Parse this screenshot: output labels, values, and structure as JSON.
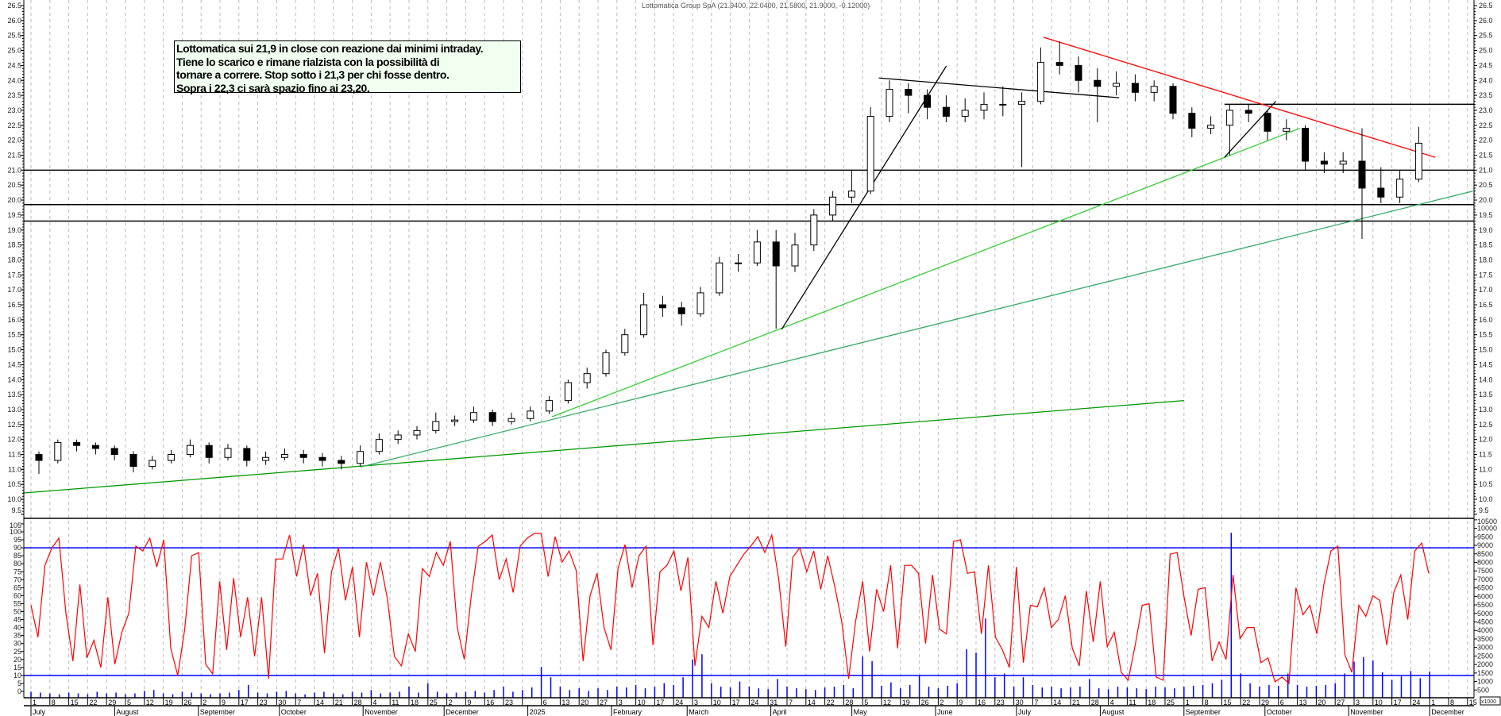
{
  "header": {
    "title": "Lottomatica Group SpA (21.9400, 22.0400, 21.5800, 21.9000, -0.12000)"
  },
  "annotation": {
    "lines": [
      "Lottomatica sui 21,9 in close con reazione dai minimi intraday.",
      "Tiene lo scarico e rimane rialzista con la possibilità di",
      "tornare a correre.  Stop sotto i 21,3 per chi fosse dentro.",
      "Sopra i 22,3 ci sarà spazio fino ai 23,20."
    ]
  },
  "chart_data": [
    {
      "type": "candlestick",
      "panel": "price",
      "interval": "week",
      "ohlc": [
        [
          11.5,
          11.6,
          10.85,
          11.3
        ],
        [
          11.3,
          12.0,
          11.2,
          11.9
        ],
        [
          11.9,
          12.0,
          11.6,
          11.8
        ],
        [
          11.8,
          11.9,
          11.5,
          11.7
        ],
        [
          11.7,
          11.8,
          11.3,
          11.5
        ],
        [
          11.5,
          11.6,
          10.9,
          11.1
        ],
        [
          11.1,
          11.45,
          11.0,
          11.3
        ],
        [
          11.3,
          11.65,
          11.2,
          11.5
        ],
        [
          11.5,
          12.0,
          11.4,
          11.8
        ],
        [
          11.8,
          11.9,
          11.2,
          11.4
        ],
        [
          11.4,
          11.85,
          11.3,
          11.7
        ],
        [
          11.7,
          11.8,
          11.1,
          11.3
        ],
        [
          11.3,
          11.6,
          11.15,
          11.4
        ],
        [
          11.4,
          11.7,
          11.3,
          11.5
        ],
        [
          11.5,
          11.65,
          11.2,
          11.4
        ],
        [
          11.4,
          11.55,
          11.1,
          11.3
        ],
        [
          11.3,
          11.45,
          11.0,
          11.2
        ],
        [
          11.2,
          11.8,
          11.1,
          11.6
        ],
        [
          11.6,
          12.2,
          11.5,
          12.0
        ],
        [
          12.0,
          12.3,
          11.85,
          12.15
        ],
        [
          12.15,
          12.45,
          12.0,
          12.3
        ],
        [
          12.3,
          12.9,
          12.2,
          12.6
        ],
        [
          12.6,
          12.8,
          12.45,
          12.65
        ],
        [
          12.65,
          13.1,
          12.55,
          12.9
        ],
        [
          12.9,
          13.0,
          12.45,
          12.6
        ],
        [
          12.6,
          12.9,
          12.5,
          12.7
        ],
        [
          12.7,
          13.1,
          12.6,
          12.95
        ],
        [
          12.95,
          13.45,
          12.85,
          13.3
        ],
        [
          13.3,
          14.0,
          13.2,
          13.9
        ],
        [
          13.9,
          14.4,
          13.7,
          14.2
        ],
        [
          14.2,
          15.0,
          14.1,
          14.9
        ],
        [
          14.9,
          15.7,
          14.8,
          15.5
        ],
        [
          15.5,
          16.9,
          15.4,
          16.5
        ],
        [
          16.5,
          16.8,
          16.1,
          16.4
        ],
        [
          16.4,
          16.6,
          15.8,
          16.2
        ],
        [
          16.2,
          17.1,
          16.1,
          16.9
        ],
        [
          16.9,
          18.1,
          16.8,
          17.9
        ],
        [
          17.9,
          18.2,
          17.6,
          17.9
        ],
        [
          17.9,
          19.0,
          17.8,
          18.6
        ],
        [
          18.6,
          19.0,
          15.7,
          17.8
        ],
        [
          17.8,
          18.9,
          17.6,
          18.5
        ],
        [
          18.5,
          19.7,
          18.3,
          19.5
        ],
        [
          19.5,
          20.3,
          19.3,
          20.1
        ],
        [
          20.1,
          21.0,
          19.9,
          20.3
        ],
        [
          20.3,
          23.1,
          20.2,
          22.8
        ],
        [
          22.8,
          24.0,
          22.6,
          23.7
        ],
        [
          23.7,
          23.9,
          22.9,
          23.5
        ],
        [
          23.5,
          23.7,
          22.7,
          23.1
        ],
        [
          23.1,
          23.5,
          22.6,
          22.8
        ],
        [
          22.8,
          23.4,
          22.6,
          23.0
        ],
        [
          23.0,
          23.6,
          22.7,
          23.2
        ],
        [
          23.2,
          23.8,
          22.8,
          23.2
        ],
        [
          23.2,
          23.6,
          21.1,
          23.3
        ],
        [
          23.3,
          25.1,
          23.2,
          24.6
        ],
        [
          24.6,
          25.3,
          24.2,
          24.5
        ],
        [
          24.5,
          24.8,
          23.6,
          24.0
        ],
        [
          24.0,
          24.4,
          22.6,
          23.8
        ],
        [
          23.8,
          24.3,
          23.5,
          23.9
        ],
        [
          23.9,
          24.2,
          23.3,
          23.6
        ],
        [
          23.6,
          24.0,
          23.3,
          23.8
        ],
        [
          23.8,
          23.9,
          22.7,
          22.9
        ],
        [
          22.9,
          23.1,
          22.1,
          22.4
        ],
        [
          22.4,
          22.8,
          22.2,
          22.5
        ],
        [
          22.5,
          23.2,
          21.5,
          23.0
        ],
        [
          23.0,
          23.2,
          22.6,
          22.9
        ],
        [
          22.9,
          23.0,
          22.0,
          22.3
        ],
        [
          22.3,
          22.7,
          22.0,
          22.4
        ],
        [
          22.4,
          22.5,
          21.0,
          21.3
        ],
        [
          21.3,
          21.6,
          20.9,
          21.2
        ],
        [
          21.2,
          21.6,
          20.9,
          21.3
        ],
        [
          21.3,
          22.4,
          18.7,
          20.4
        ],
        [
          20.4,
          21.1,
          19.9,
          20.1
        ],
        [
          20.1,
          21.0,
          19.9,
          20.7
        ],
        [
          20.7,
          22.45,
          20.6,
          21.9
        ]
      ],
      "ylim": [
        9.5,
        26.5
      ],
      "y_ticks": [
        26.5,
        26.0,
        25.5,
        25.0,
        24.5,
        24.0,
        23.5,
        23.0,
        22.5,
        22.0,
        21.5,
        21.0,
        20.5,
        20.0,
        19.5,
        19.0,
        18.5,
        18.0,
        17.5,
        17.0,
        16.5,
        16.0,
        15.5,
        15.0,
        14.5,
        14.0,
        13.5,
        13.0,
        12.5,
        12.0,
        11.5,
        11.0,
        10.5,
        10.0,
        9.5
      ],
      "horizontal_lines": [
        {
          "price": 21.0,
          "color": "#000000"
        },
        {
          "price": 19.85,
          "color": "#000000"
        },
        {
          "price": 19.3,
          "color": "#000000"
        },
        {
          "price": 23.2,
          "from": "2025-09-16",
          "color": "#000000"
        }
      ],
      "trendlines": [
        {
          "from": [
            "2024-06-28",
            10.21
          ],
          "to": [
            "2025-09-01",
            13.3
          ],
          "color": "#009900"
        },
        {
          "from": [
            "2024-10-31",
            11.08
          ],
          "to": [
            "2025-12-17",
            20.3
          ],
          "color": "#33aa66"
        },
        {
          "from": [
            "2025-01-10",
            12.76
          ],
          "to": [
            "2025-10-14",
            22.4
          ],
          "color": "#33cc33"
        },
        {
          "from": [
            "2025-04-05",
            15.68
          ],
          "to": [
            "2025-06-05",
            24.48
          ],
          "color": "#000000"
        },
        {
          "from": [
            "2025-05-11",
            24.08
          ],
          "to": [
            "2025-08-08",
            23.42
          ],
          "color": "#000000"
        },
        {
          "from": [
            "2025-09-16",
            21.43
          ],
          "to": [
            "2025-10-05",
            23.3
          ],
          "color": "#000000"
        },
        {
          "from": [
            "2025-07-11",
            25.44
          ],
          "to": [
            "2025-12-03",
            21.43
          ],
          "color": "#ff0000"
        }
      ],
      "grid": true
    },
    {
      "type": "line",
      "panel": "oscillator",
      "color": "#ff0000",
      "values": [
        54,
        34,
        79,
        90,
        96,
        49,
        19,
        67,
        21,
        32,
        15,
        59,
        17,
        37,
        49,
        91,
        88,
        96,
        78,
        95,
        27,
        10,
        39,
        85,
        87,
        17,
        11,
        69,
        26,
        71,
        34,
        59,
        22,
        59,
        8,
        83,
        83,
        98,
        72,
        92,
        60,
        74,
        24,
        75,
        90,
        57,
        78,
        34,
        81,
        60,
        81,
        58,
        22,
        16,
        36,
        25,
        77,
        72,
        87,
        79,
        94,
        40,
        20,
        60,
        91,
        94,
        98,
        70,
        83,
        62,
        91,
        96,
        99,
        99,
        72,
        97,
        81,
        88,
        76,
        19,
        60,
        74,
        40,
        26,
        77,
        92,
        65,
        85,
        91,
        29,
        75,
        79,
        88,
        63,
        84,
        16,
        47,
        40,
        69,
        49,
        72,
        79,
        86,
        91,
        97,
        87,
        98,
        70,
        28,
        84,
        90,
        75,
        88,
        64,
        85,
        66,
        44,
        8,
        44,
        69,
        25,
        64,
        50,
        79,
        27,
        79,
        79,
        74,
        30,
        73,
        39,
        36,
        94,
        95,
        74,
        75,
        36,
        79,
        34,
        26,
        15,
        78,
        18,
        54,
        53,
        65,
        40,
        45,
        60,
        27,
        16,
        63,
        31,
        69,
        28,
        37,
        12,
        7,
        29,
        54,
        55,
        9,
        7,
        86,
        87,
        59,
        35,
        64,
        65,
        19,
        31,
        20,
        73,
        33,
        40,
        40,
        18,
        21,
        6,
        9,
        5,
        65,
        48,
        54,
        36,
        67,
        88,
        91,
        23,
        12,
        54,
        47,
        60,
        57,
        29,
        62,
        73,
        45,
        88,
        93,
        74
      ],
      "ylim": [
        0,
        108
      ],
      "y_ticks": [
        105,
        100,
        95,
        90,
        85,
        80,
        75,
        70,
        65,
        60,
        55,
        50,
        45,
        40,
        35,
        30,
        25,
        20,
        15,
        10,
        5,
        0
      ],
      "levels": [
        {
          "value": 90,
          "color": "#0000ff"
        },
        {
          "value": 10,
          "color": "#0000ff"
        }
      ]
    },
    {
      "type": "bar",
      "panel": "volume",
      "color": "#0000ff",
      "values": [
        400,
        350,
        300,
        250,
        350,
        300,
        250,
        400,
        300,
        350,
        250,
        300,
        450,
        500,
        300,
        250,
        400,
        350,
        300,
        250,
        300,
        350,
        500,
        800,
        350,
        300,
        400,
        450,
        300,
        250,
        350,
        400,
        300,
        250,
        400,
        350,
        500,
        300,
        350,
        400,
        700,
        350,
        900,
        400,
        300,
        350,
        400,
        450,
        350,
        500,
        700,
        400,
        500,
        650,
        1860,
        1250,
        700,
        500,
        600,
        450,
        600,
        500,
        700,
        650,
        800,
        600,
        700,
        900,
        800,
        1250,
        2300,
        2600,
        900,
        700,
        650,
        1000,
        700,
        600,
        550,
        1150,
        700,
        600,
        550,
        500,
        650,
        700,
        800,
        600,
        2470,
        2200,
        750,
        950,
        600,
        800,
        1350,
        700,
        600,
        750,
        900,
        2900,
        2700,
        4700,
        1250,
        1470,
        700,
        1250,
        800,
        650,
        700,
        600,
        650,
        700,
        1150,
        600,
        550,
        700,
        650,
        600,
        550,
        700,
        650,
        600,
        700,
        750,
        800,
        900,
        1100,
        9740,
        1470,
        900,
        700,
        800,
        750,
        1470,
        800,
        700,
        750,
        800,
        900,
        1470,
        2160,
        2440,
        2240,
        1540,
        1100,
        1300,
        1620,
        1200,
        1590
      ],
      "y_ticks": [
        10500,
        10000,
        9500,
        9000,
        8500,
        8000,
        7500,
        7000,
        6500,
        6000,
        5500,
        5000,
        4500,
        4000,
        3500,
        3000,
        2500,
        2000,
        1500,
        1000,
        500
      ],
      "unit_label": "x1000"
    }
  ],
  "x_axis": {
    "day_labels": [
      "1",
      "8",
      "15",
      "22",
      "29",
      "5",
      "12",
      "19",
      "26",
      "2",
      "9",
      "17",
      "23",
      "30",
      "7",
      "14",
      "21",
      "28",
      "4",
      "11",
      "18",
      "25",
      "2",
      "9",
      "16",
      "23",
      "",
      "6",
      "13",
      "20",
      "27",
      "3",
      "10",
      "17",
      "24",
      "3",
      "10",
      "17",
      "24",
      "31",
      "7",
      "14",
      "22",
      "28",
      "5",
      "12",
      "19",
      "26",
      "2",
      "9",
      "16",
      "23",
      "30",
      "7",
      "14",
      "21",
      "28",
      "4",
      "11",
      "18",
      "25",
      "1",
      "8",
      "15",
      "22",
      "29",
      "6",
      "13",
      "20",
      "27",
      "3",
      "10",
      "17",
      "24",
      "1",
      "8",
      "15"
    ],
    "month_labels": [
      "July",
      "August",
      "September",
      "October",
      "November",
      "December",
      "2025",
      "February",
      "March",
      "April",
      "May",
      "June",
      "July",
      "August",
      "September",
      "October",
      "November",
      "December"
    ]
  }
}
